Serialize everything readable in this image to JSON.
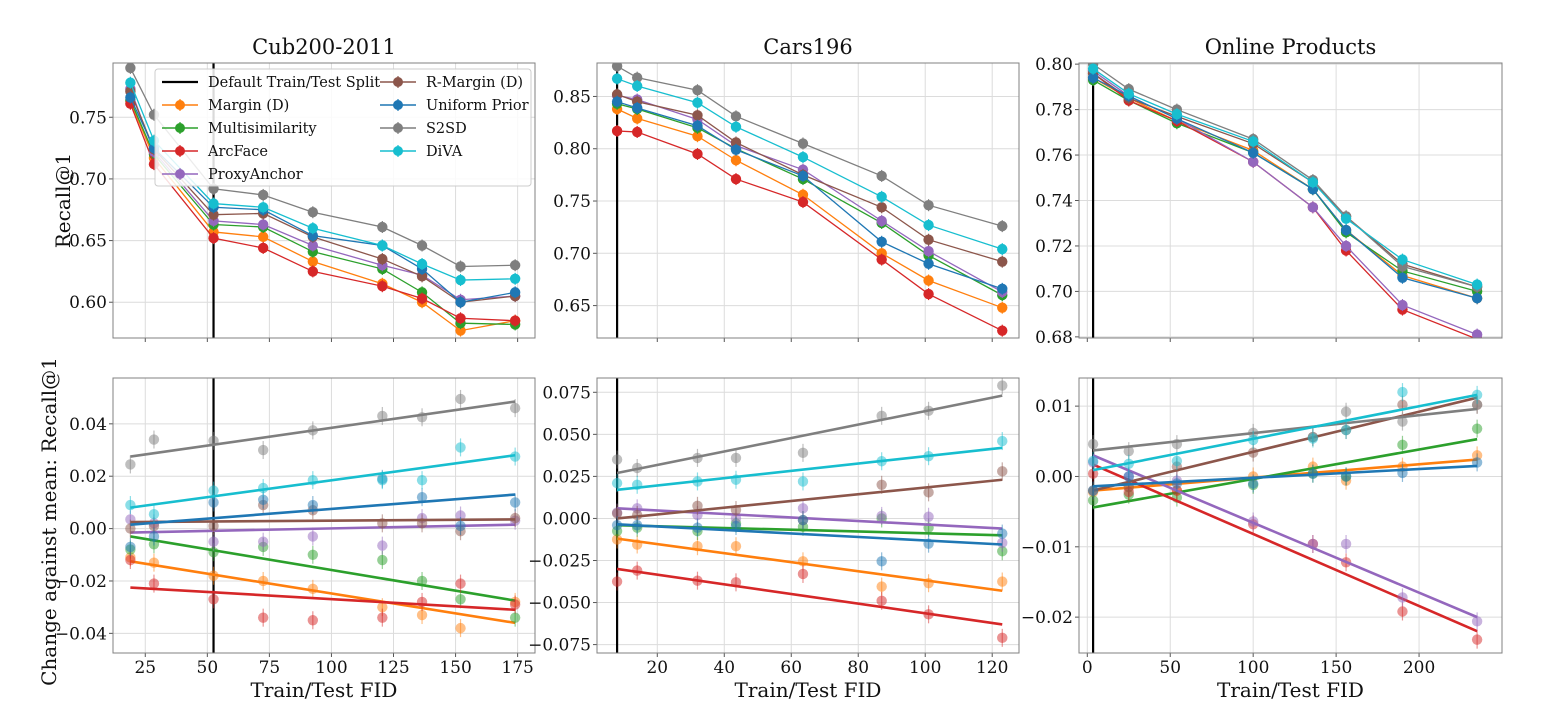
{
  "colors": {
    "default_split": "#000000",
    "Margin (D)": "#ff7f0e",
    "Multisimilarity": "#2ca02c",
    "ArcFace": "#d62728",
    "ProxyAnchor": "#9467bd",
    "R-Margin (D)": "#8c564b",
    "Uniform Prior": "#1f77b4",
    "S2SD": "#7f7f7f",
    "DiVA": "#17becf"
  },
  "legend": {
    "placement": "upper-right (inside Cub200-2011 top panel)",
    "entries": [
      "Default Train/Test Split",
      "Margin (D)",
      "Multisimilarity",
      "ArcFace",
      "ProxyAnchor",
      "R-Margin (D)",
      "Uniform Prior",
      "S2SD",
      "DiVA"
    ]
  },
  "chart_data": [
    {
      "type": "line",
      "panel": "top-left",
      "title": "Cub200-2011",
      "xlabel": "",
      "ylabel": "Recall@1",
      "xlim": [
        12,
        182
      ],
      "ylim": [
        0.571,
        0.794
      ],
      "xticks": [
        25,
        50,
        75,
        100,
        125,
        150,
        175
      ],
      "yticks": [
        "0.60",
        "0.65",
        "0.70",
        "0.75"
      ],
      "grid": true,
      "default_split_x": 52.5,
      "x": [
        19,
        28.5,
        52.5,
        72.5,
        92.5,
        120.5,
        136.5,
        152,
        174
      ],
      "series": [
        {
          "name": "Margin (D)",
          "values": [
            0.763,
            0.717,
            0.657,
            0.653,
            0.633,
            0.615,
            0.6,
            0.577,
            0.585
          ]
        },
        {
          "name": "Multisimilarity",
          "values": [
            0.764,
            0.72,
            0.663,
            0.661,
            0.641,
            0.627,
            0.608,
            0.583,
            0.582
          ]
        },
        {
          "name": "ArcFace",
          "values": [
            0.761,
            0.712,
            0.652,
            0.644,
            0.625,
            0.613,
            0.603,
            0.587,
            0.585
          ]
        },
        {
          "name": "ProxyAnchor",
          "values": [
            0.773,
            0.722,
            0.666,
            0.663,
            0.646,
            0.63,
            0.622,
            0.602,
            0.605
          ]
        },
        {
          "name": "R-Margin (D)",
          "values": [
            0.771,
            0.724,
            0.671,
            0.672,
            0.653,
            0.635,
            0.621,
            0.6,
            0.605
          ]
        },
        {
          "name": "Uniform Prior",
          "values": [
            0.766,
            0.725,
            0.677,
            0.675,
            0.654,
            0.646,
            0.627,
            0.6,
            0.608
          ]
        },
        {
          "name": "S2SD",
          "values": [
            0.79,
            0.752,
            0.692,
            0.687,
            0.673,
            0.661,
            0.646,
            0.629,
            0.63
          ]
        },
        {
          "name": "DiVA",
          "values": [
            0.778,
            0.731,
            0.68,
            0.677,
            0.66,
            0.646,
            0.631,
            0.618,
            0.619
          ]
        }
      ]
    },
    {
      "type": "line",
      "panel": "top-middle",
      "title": "Cars196",
      "xlabel": "",
      "ylabel": "",
      "xlim": [
        2,
        128
      ],
      "ylim": [
        0.619,
        0.882
      ],
      "xticks": [
        20,
        40,
        60,
        80,
        100,
        120
      ],
      "yticks": [
        "0.65",
        "0.70",
        "0.75",
        "0.80",
        "0.85"
      ],
      "grid": true,
      "default_split_x": 8,
      "x": [
        8,
        14,
        32,
        43.5,
        63.5,
        87,
        101,
        123
      ],
      "series": [
        {
          "name": "Margin (D)",
          "values": [
            0.838,
            0.829,
            0.812,
            0.789,
            0.756,
            0.7,
            0.674,
            0.648
          ]
        },
        {
          "name": "Multisimilarity",
          "values": [
            0.843,
            0.838,
            0.82,
            0.8,
            0.771,
            0.729,
            0.698,
            0.66
          ]
        },
        {
          "name": "ArcFace",
          "values": [
            0.817,
            0.816,
            0.795,
            0.771,
            0.749,
            0.694,
            0.661,
            0.626
          ]
        },
        {
          "name": "ProxyAnchor",
          "values": [
            0.851,
            0.847,
            0.828,
            0.803,
            0.78,
            0.731,
            0.702,
            0.663
          ]
        },
        {
          "name": "R-Margin (D)",
          "values": [
            0.852,
            0.845,
            0.832,
            0.806,
            0.775,
            0.744,
            0.713,
            0.692
          ]
        },
        {
          "name": "Uniform Prior",
          "values": [
            0.845,
            0.839,
            0.822,
            0.799,
            0.774,
            0.711,
            0.69,
            0.666
          ]
        },
        {
          "name": "S2SD",
          "values": [
            0.879,
            0.868,
            0.856,
            0.831,
            0.805,
            0.774,
            0.746,
            0.726
          ]
        },
        {
          "name": "DiVA",
          "values": [
            0.867,
            0.86,
            0.844,
            0.821,
            0.792,
            0.754,
            0.727,
            0.704
          ]
        }
      ]
    },
    {
      "type": "line",
      "panel": "top-right",
      "title": "Online Products",
      "xlabel": "",
      "ylabel": "",
      "xlim": [
        -5,
        250
      ],
      "ylim": [
        0.6795,
        0.8005
      ],
      "xticks": [
        0,
        50,
        100,
        150,
        200
      ],
      "yticks": [
        "0.68",
        "0.70",
        "0.72",
        "0.74",
        "0.76",
        "0.78",
        "0.80"
      ],
      "grid": true,
      "default_split_x": 3.5,
      "x": [
        3.5,
        25,
        54,
        100,
        136,
        156,
        190,
        235
      ],
      "series": [
        {
          "name": "Margin (D)",
          "values": [
            0.794,
            0.785,
            0.775,
            0.762,
            0.745,
            0.727,
            0.707,
            0.697
          ]
        },
        {
          "name": "Multisimilarity",
          "values": [
            0.793,
            0.784,
            0.774,
            0.761,
            0.745,
            0.726,
            0.709,
            0.7
          ]
        },
        {
          "name": "ArcFace",
          "values": [
            0.796,
            0.784,
            0.775,
            0.757,
            0.737,
            0.718,
            0.692,
            0.679
          ]
        },
        {
          "name": "ProxyAnchor",
          "values": [
            0.797,
            0.786,
            0.776,
            0.757,
            0.737,
            0.72,
            0.694,
            0.681
          ]
        },
        {
          "name": "R-Margin (D)",
          "values": [
            0.796,
            0.785,
            0.777,
            0.765,
            0.748,
            0.733,
            0.712,
            0.702
          ]
        },
        {
          "name": "Uniform Prior",
          "values": [
            0.794,
            0.786,
            0.776,
            0.761,
            0.745,
            0.727,
            0.706,
            0.697
          ]
        },
        {
          "name": "S2SD",
          "values": [
            0.8,
            0.789,
            0.78,
            0.767,
            0.749,
            0.733,
            0.711,
            0.702
          ]
        },
        {
          "name": "DiVA",
          "values": [
            0.798,
            0.787,
            0.778,
            0.766,
            0.748,
            0.732,
            0.714,
            0.703
          ]
        }
      ]
    },
    {
      "type": "scatter",
      "panel": "bottom-left",
      "title": "",
      "xlabel": "Train/Test FID",
      "ylabel": "Change against mean: Recall@1",
      "xlim": [
        12,
        182
      ],
      "ylim": [
        -0.0475,
        0.0575
      ],
      "xticks": [
        25,
        50,
        75,
        100,
        125,
        150,
        175
      ],
      "yticks": [
        "-0.04",
        "-0.02",
        "0.00",
        "0.02",
        "0.04"
      ],
      "grid": true,
      "default_split_x": 52.5,
      "x": [
        19,
        28.5,
        52.5,
        72.5,
        92.5,
        120.5,
        136.5,
        152,
        174
      ],
      "series": [
        {
          "name": "Margin (D)",
          "values": [
            -0.011,
            -0.013,
            -0.018,
            -0.02,
            -0.023,
            -0.03,
            -0.033,
            -0.038,
            -0.028
          ],
          "fit": [
            -0.0125,
            -0.036
          ]
        },
        {
          "name": "Multisimilarity",
          "values": [
            -0.008,
            -0.006,
            -0.009,
            -0.007,
            -0.01,
            -0.012,
            -0.02,
            -0.027,
            -0.034
          ],
          "fit": [
            -0.003,
            -0.0275
          ]
        },
        {
          "name": "ArcFace",
          "values": [
            -0.012,
            -0.021,
            -0.027,
            -0.034,
            -0.035,
            -0.034,
            -0.028,
            -0.021,
            -0.029
          ],
          "fit": [
            -0.0225,
            -0.031
          ]
        },
        {
          "name": "ProxyAnchor",
          "values": [
            0.0035,
            0.002,
            -0.005,
            -0.005,
            -0.003,
            -0.0065,
            0.004,
            0.005,
            0.003
          ],
          "fit": [
            -0.0015,
            0.0015
          ]
        },
        {
          "name": "R-Margin (D)",
          "values": [
            0.0,
            0.001,
            0.001,
            0.009,
            0.007,
            0.002,
            0.002,
            -0.001,
            0.004
          ],
          "fit": [
            0.0025,
            0.0035
          ]
        },
        {
          "name": "Uniform Prior",
          "values": [
            -0.007,
            -0.003,
            0.01,
            0.011,
            0.009,
            0.019,
            0.012,
            0.001,
            0.01
          ],
          "fit": [
            0.0015,
            0.013
          ]
        },
        {
          "name": "S2SD",
          "values": [
            0.0245,
            0.034,
            0.0335,
            0.03,
            0.0375,
            0.043,
            0.0425,
            0.0495,
            0.046
          ],
          "fit": [
            0.0275,
            0.0485
          ]
        },
        {
          "name": "DiVA",
          "values": [
            0.009,
            0.0055,
            0.0145,
            0.0155,
            0.0185,
            0.0185,
            0.0185,
            0.031,
            0.0275
          ],
          "fit": [
            0.008,
            0.028
          ]
        }
      ]
    },
    {
      "type": "scatter",
      "panel": "bottom-middle",
      "title": "",
      "xlabel": "Train/Test FID",
      "ylabel": "",
      "xlim": [
        2,
        128
      ],
      "ylim": [
        -0.08,
        0.0835
      ],
      "xticks": [
        20,
        40,
        60,
        80,
        100,
        120
      ],
      "yticks": [
        "-0.075",
        "-0.050",
        "-0.025",
        "0.000",
        "0.025",
        "0.050",
        "0.075"
      ],
      "grid": true,
      "default_split_x": 8,
      "x": [
        8,
        14,
        32,
        43.5,
        63.5,
        87,
        101,
        123
      ],
      "series": [
        {
          "name": "Margin (D)",
          "values": [
            -0.0125,
            -0.0155,
            -0.0165,
            -0.0165,
            -0.0255,
            -0.0405,
            -0.0385,
            -0.0375
          ],
          "fit": [
            -0.012,
            -0.043
          ]
        },
        {
          "name": "Multisimilarity",
          "values": [
            -0.0075,
            -0.0055,
            -0.0075,
            -0.003,
            -0.005,
            -0.0,
            -0.0055,
            -0.0195
          ],
          "fit": [
            -0.004,
            -0.01
          ]
        },
        {
          "name": "ArcFace",
          "values": [
            -0.0375,
            -0.031,
            -0.037,
            -0.038,
            -0.033,
            -0.049,
            -0.057,
            -0.071
          ],
          "fit": [
            -0.03,
            -0.063
          ]
        },
        {
          "name": "ProxyAnchor",
          "values": [
            0.0035,
            0.006,
            0.002,
            0.0,
            0.006,
            0.0015,
            0.001,
            -0.0145
          ],
          "fit": [
            0.006,
            -0.006
          ]
        },
        {
          "name": "R-Margin (D)",
          "values": [
            0.003,
            0.002,
            0.0075,
            0.005,
            -0.001,
            0.02,
            0.0155,
            0.028
          ],
          "fit": [
            0.0,
            0.023
          ]
        },
        {
          "name": "Uniform Prior",
          "values": [
            -0.004,
            -0.004,
            -0.0055,
            -0.0045,
            -0.001,
            -0.0255,
            -0.015,
            -0.009
          ],
          "fit": [
            -0.0035,
            -0.0155
          ]
        },
        {
          "name": "S2SD",
          "values": [
            0.035,
            0.03,
            0.036,
            0.036,
            0.039,
            0.061,
            0.064,
            0.079
          ],
          "fit": [
            0.027,
            0.073
          ]
        },
        {
          "name": "DiVA",
          "values": [
            0.021,
            0.02,
            0.022,
            0.023,
            0.022,
            0.034,
            0.037,
            0.046
          ],
          "fit": [
            0.017,
            0.042
          ]
        }
      ]
    },
    {
      "type": "scatter",
      "panel": "bottom-right",
      "title": "",
      "xlabel": "Train/Test FID",
      "ylabel": "",
      "xlim": [
        -5,
        250
      ],
      "ylim": [
        -0.0251,
        0.014
      ],
      "xticks": [
        0,
        50,
        100,
        150,
        200
      ],
      "yticks": [
        "-0.02",
        "-0.01",
        "0.00",
        "0.01"
      ],
      "grid": true,
      "default_split_x": 3.5,
      "x": [
        3.5,
        25,
        54,
        100,
        136,
        156,
        190,
        235
      ],
      "series": [
        {
          "name": "Margin (D)",
          "values": [
            -0.0022,
            -0.0015,
            -0.002,
            0.0,
            0.0014,
            -0.0006,
            0.0014,
            0.003
          ],
          "fit": [
            -0.002,
            0.0024
          ]
        },
        {
          "name": "Multisimilarity",
          "values": [
            -0.0034,
            -0.0026,
            -0.003,
            -0.0012,
            0.0004,
            0.0,
            0.0045,
            0.0068
          ],
          "fit": [
            -0.0044,
            0.0053
          ]
        },
        {
          "name": "ArcFace",
          "values": [
            0.0004,
            -0.0022,
            -0.002,
            -0.0068,
            -0.0096,
            -0.0122,
            -0.0192,
            -0.0232
          ],
          "fit": [
            0.0017,
            -0.022
          ]
        },
        {
          "name": "ProxyAnchor",
          "values": [
            0.002,
            0.0,
            -0.0006,
            -0.0064,
            -0.0096,
            -0.0096,
            -0.0172,
            -0.0206
          ],
          "fit": [
            0.003,
            -0.02
          ]
        },
        {
          "name": "R-Margin (D)",
          "values": [
            -0.002,
            -0.0015,
            0.0014,
            0.0034,
            0.0056,
            0.0066,
            0.0102,
            0.0102
          ],
          "fit": [
            -0.002,
            0.0112
          ]
        },
        {
          "name": "Uniform Prior",
          "values": [
            -0.002,
            0.0,
            -0.001,
            -0.001,
            0.0004,
            0.0,
            0.0005,
            0.002
          ],
          "fit": [
            -0.0014,
            0.0015
          ]
        },
        {
          "name": "S2SD",
          "values": [
            0.0046,
            0.0036,
            0.0046,
            0.0062,
            0.0056,
            0.0092,
            0.0078,
            0.0102
          ],
          "fit": [
            0.0037,
            0.0096
          ]
        },
        {
          "name": "DiVA",
          "values": [
            0.0022,
            0.0018,
            0.0022,
            0.0052,
            0.0054,
            0.0066,
            0.012,
            0.0116
          ],
          "fit": [
            0.0009,
            0.0116
          ]
        }
      ]
    }
  ]
}
